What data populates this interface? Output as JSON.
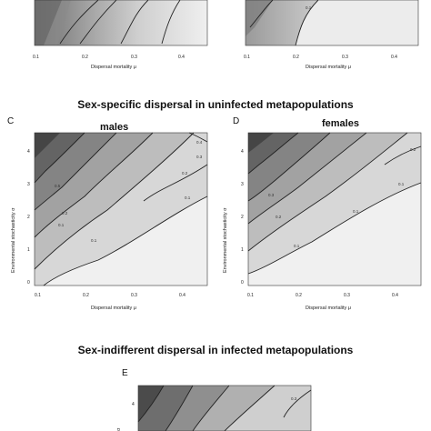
{
  "sections": {
    "uninfected_title": "Sex-specific dispersal in uninfected metapopulations",
    "infected_title": "Sex-indifferent dispersal in infected metapopulations"
  },
  "panels": {
    "top_left": {
      "xticks": [
        "0.1",
        "0.2",
        "0.3",
        "0.4"
      ],
      "xlabel": "Dispersal mortality μ",
      "contours": [
        "0.1"
      ]
    },
    "top_right": {
      "xticks": [
        "0.1",
        "0.2",
        "0.3",
        "0.4"
      ],
      "xlabel": "Dispersal mortality μ",
      "contours": [
        "0.1"
      ]
    },
    "C": {
      "letter": "C",
      "subtitle": "males",
      "xticks": [
        "0.1",
        "0.2",
        "0.3",
        "0.4"
      ],
      "yticks": [
        "0",
        "1",
        "2",
        "3",
        "4"
      ],
      "xlabel": "Dispersal mortality μ",
      "ylabel": "Environmental stochasticity  σ",
      "contours": [
        "0.4",
        "0.3",
        "0.2",
        "0.1",
        "0.5",
        "0.2",
        "0.1",
        "0.1"
      ]
    },
    "D": {
      "letter": "D",
      "subtitle": "females",
      "xticks": [
        "0.1",
        "0.2",
        "0.3",
        "0.4"
      ],
      "yticks": [
        "0",
        "1",
        "2",
        "3",
        "4"
      ],
      "xlabel": "Dispersal mortality μ",
      "ylabel": "Environmental stochasticity  σ",
      "contours": [
        "0.2",
        "0.1",
        "0.1",
        "0.3",
        "0.2",
        "0.1"
      ]
    },
    "E": {
      "letter": "E",
      "yticks": [
        "4"
      ],
      "ylabel": "σ",
      "contours": [
        "0.3"
      ]
    }
  }
}
